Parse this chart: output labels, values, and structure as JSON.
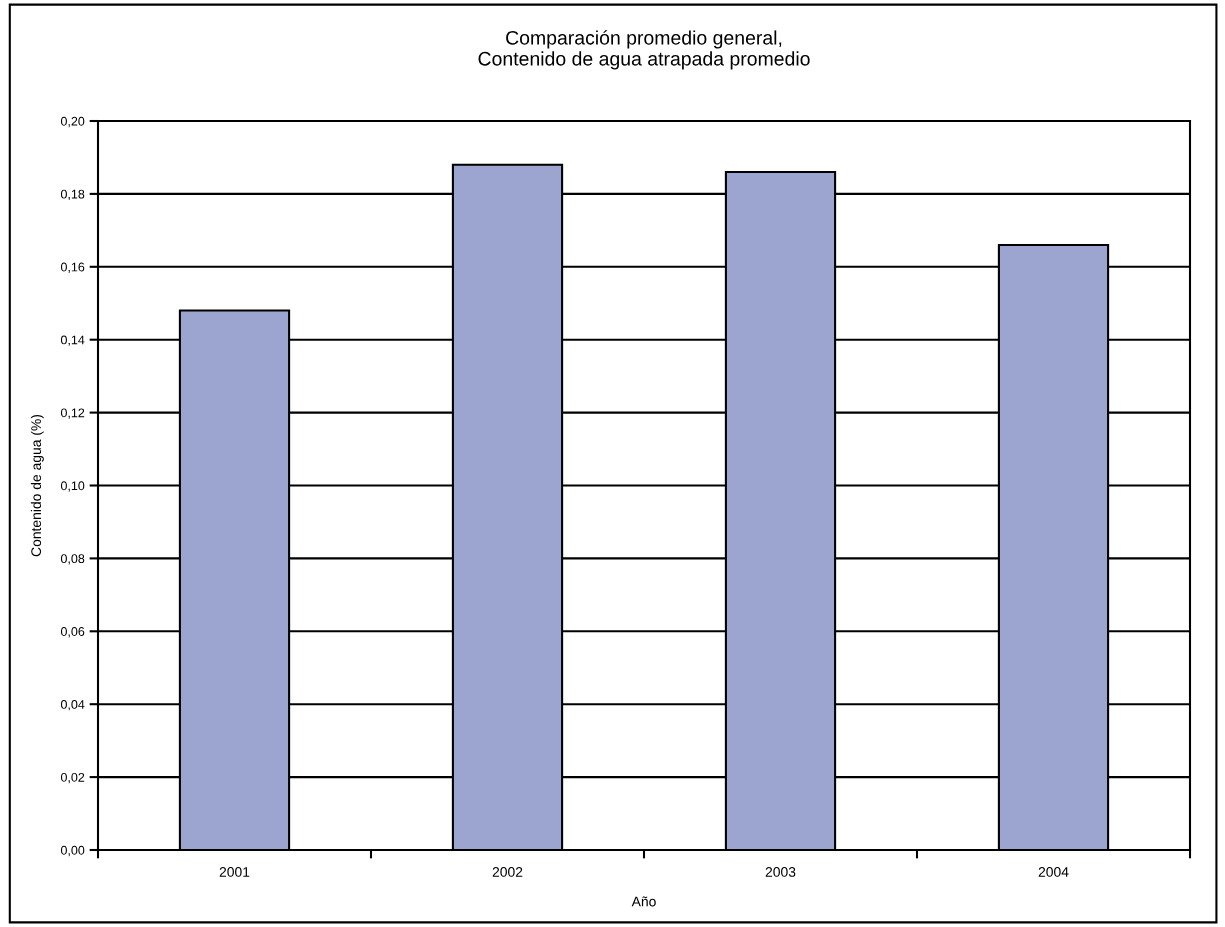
{
  "chart_data": {
    "type": "bar",
    "title": "Comparación promedio general,\nContenido de agua atrapada promedio",
    "xlabel": "Año",
    "ylabel": "Contenido de agua (%)",
    "categories": [
      "2001",
      "2002",
      "2003",
      "2004"
    ],
    "values": [
      0.148,
      0.188,
      0.186,
      0.166
    ],
    "color": "#9ba5cf",
    "ylim": [
      0,
      0.2
    ],
    "yticks": [
      {
        "value": 0,
        "label": "0,00"
      },
      {
        "value": 0.02,
        "label": "0,02"
      },
      {
        "value": 0.04,
        "label": "0,04"
      },
      {
        "value": 0.06,
        "label": "0,06"
      },
      {
        "value": 0.08,
        "label": "0,08"
      },
      {
        "value": 0.1,
        "label": "0,10"
      },
      {
        "value": 0.12,
        "label": "0,12"
      },
      {
        "value": 0.14,
        "label": "0,14"
      },
      {
        "value": 0.16,
        "label": "0,16"
      },
      {
        "value": 0.18,
        "label": "0,18"
      },
      {
        "value": 0.2,
        "label": "0,20"
      }
    ],
    "grid": "y",
    "legend": false
  }
}
